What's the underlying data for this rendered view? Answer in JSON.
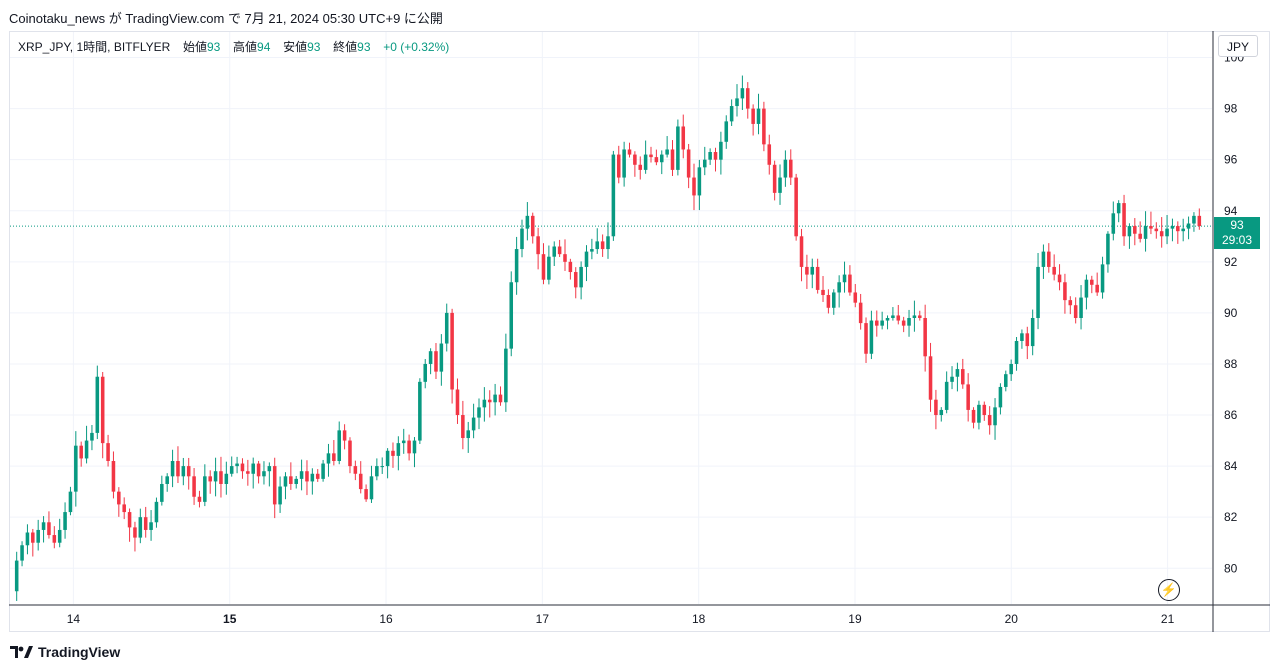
{
  "header": {
    "publish_text": "Coinotaku_news が TradingView.com で 7月 21, 2024 05:30 UTC+9 に公開"
  },
  "legend": {
    "symbol": "XRP_JPY, 1時間, BITFLYER",
    "open_label": "始値",
    "open_value": "93",
    "high_label": "高値",
    "high_value": "94",
    "low_label": "安値",
    "low_value": "93",
    "close_label": "終値",
    "close_value": "93",
    "change": "+0 (+0.32%)"
  },
  "currency_button": "JPY",
  "price_label": {
    "price": "93",
    "countdown": "29:03"
  },
  "footer": {
    "brand": "TradingView"
  },
  "colors": {
    "up": "#089981",
    "down": "#f23645",
    "grid": "#f0f3fa",
    "axis_text": "#131722",
    "last_price_line": "#089981"
  },
  "icons": {
    "flash": "lightning-bolt-icon",
    "logo": "tradingview-logo-icon"
  },
  "chart_data": {
    "type": "candlestick",
    "ylim": [
      78.6,
      101.0
    ],
    "yticks": [
      80,
      82,
      84,
      86,
      88,
      90,
      92,
      94,
      96,
      98,
      100
    ],
    "xticks": [
      {
        "label": "14",
        "day": 14,
        "bold": false
      },
      {
        "label": "15",
        "day": 15,
        "bold": true
      },
      {
        "label": "16",
        "day": 16,
        "bold": false
      },
      {
        "label": "17",
        "day": 17,
        "bold": false
      },
      {
        "label": "18",
        "day": 18,
        "bold": false
      },
      {
        "label": "19",
        "day": 19,
        "bold": false
      },
      {
        "label": "20",
        "day": 20,
        "bold": false
      },
      {
        "label": "21",
        "day": 21,
        "bold": false
      }
    ],
    "x_start_day": 13.62,
    "x_end_day": 21.22,
    "last_price": 93.4,
    "closes": [
      80.3,
      80.9,
      81.4,
      81.0,
      81.5,
      81.8,
      81.3,
      81.0,
      81.5,
      82.2,
      83.0,
      84.8,
      84.3,
      85.0,
      85.3,
      87.5,
      84.9,
      84.2,
      83.0,
      82.5,
      82.2,
      81.6,
      81.2,
      82.0,
      81.5,
      81.8,
      82.6,
      83.3,
      83.6,
      84.2,
      83.6,
      84.0,
      83.6,
      82.8,
      82.6,
      83.6,
      83.4,
      83.8,
      83.3,
      83.7,
      84.0,
      84.1,
      83.8,
      83.7,
      84.1,
      83.6,
      83.8,
      84.0,
      82.5,
      83.2,
      83.6,
      83.3,
      83.5,
      83.8,
      83.4,
      83.7,
      83.5,
      84.1,
      84.5,
      84.2,
      85.4,
      85.0,
      84.0,
      83.7,
      83.1,
      82.7,
      83.6,
      84.0,
      84.0,
      84.6,
      84.4,
      84.9,
      85.0,
      84.5,
      85.0,
      87.3,
      88.0,
      88.5,
      87.7,
      88.8,
      90.0,
      87.0,
      86.0,
      85.1,
      85.4,
      85.9,
      86.3,
      86.6,
      86.5,
      86.8,
      86.5,
      88.6,
      91.2,
      92.5,
      93.3,
      93.8,
      93.0,
      92.3,
      91.3,
      92.2,
      92.6,
      92.3,
      92.0,
      91.6,
      91.0,
      91.8,
      92.4,
      92.5,
      92.8,
      92.5,
      93.0,
      96.2,
      95.3,
      96.4,
      96.2,
      95.8,
      95.6,
      96.2,
      96.1,
      95.9,
      96.2,
      96.4,
      95.6,
      97.3,
      96.4,
      95.3,
      94.6,
      95.7,
      96.0,
      96.3,
      96.0,
      96.7,
      97.5,
      98.1,
      98.4,
      98.8,
      98.0,
      97.4,
      98.0,
      96.6,
      95.8,
      94.7,
      95.3,
      96.0,
      95.3,
      93.0,
      91.8,
      91.5,
      91.8,
      90.9,
      90.7,
      90.2,
      90.8,
      91.2,
      91.5,
      90.8,
      90.4,
      89.6,
      88.4,
      89.7,
      89.5,
      89.7,
      89.8,
      89.9,
      89.7,
      89.5,
      89.8,
      89.9,
      89.8,
      88.3,
      86.6,
      86.0,
      86.2,
      87.3,
      87.5,
      87.8,
      87.2,
      86.2,
      85.7,
      86.4,
      86.0,
      85.6,
      86.3,
      87.1,
      87.6,
      88.0,
      88.9,
      89.2,
      88.7,
      89.8,
      91.8,
      92.4,
      91.8,
      91.5,
      91.2,
      90.5,
      90.3,
      89.8,
      90.6,
      91.3,
      91.1,
      90.8,
      91.9,
      93.1,
      93.9,
      94.3,
      93.0,
      93.4,
      93.1,
      92.9,
      93.4,
      93.3,
      93.2,
      93.0,
      93.3,
      93.4,
      93.2,
      93.3,
      93.5,
      93.8,
      93.4
    ]
  }
}
